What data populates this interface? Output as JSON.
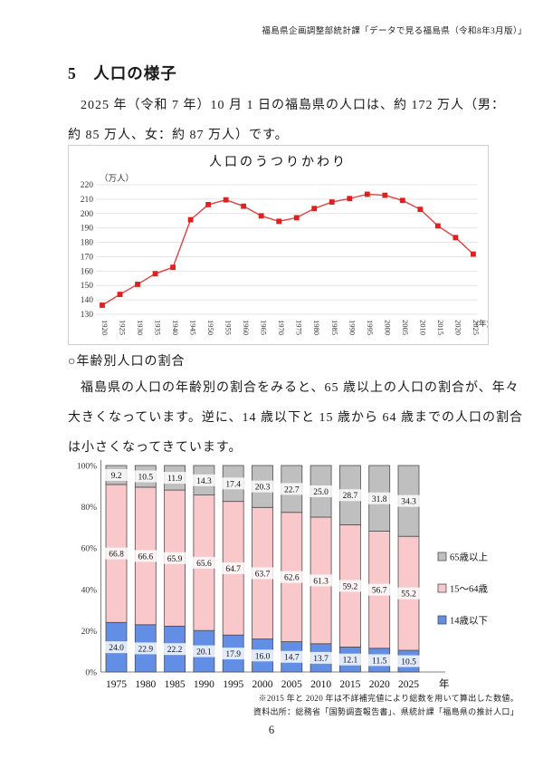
{
  "page": {
    "header": "福島県企画調整部統計課「データで見る福島県（令和8年3月版）」",
    "section_title": "5　人口の様子",
    "intro_lines": [
      "2025 年（令和 7 年）10 月 1 日の福島県の人口は、約 172 万人（男：",
      "約 85 万人、女：約 87 万人）です。"
    ],
    "subsection_heading": "○年齢別人口の割合",
    "body_lines": [
      "福島県の人口の年齢別の割合をみると、65 歳以上の人口の割合が、年々",
      "大きくなっています。逆に、14 歳以下と 15 歳から 64 歳までの人口の割合",
      "は小さくなってきています。"
    ],
    "note1": "※2015 年と 2020 年は不詳補完値により総数を用いて算出した数値。",
    "note2": "資料出所：総務省「国勢調査報告書」、県統計課「福島県の推計人口」",
    "page_number": "6"
  },
  "chart_data": [
    {
      "type": "line",
      "title": "人口のうつりかわり",
      "ylabel": "（万人）",
      "x_unit_label": "(年)",
      "x": [
        1920,
        1925,
        1930,
        1935,
        1940,
        1945,
        1950,
        1955,
        1960,
        1965,
        1970,
        1975,
        1980,
        1985,
        1990,
        1995,
        2000,
        2005,
        2010,
        2015,
        2020,
        2025
      ],
      "values": [
        136.3,
        143.8,
        150.8,
        158.2,
        162.6,
        195.7,
        206.2,
        209.5,
        205.1,
        198.4,
        194.6,
        197.1,
        203.5,
        208.0,
        210.4,
        213.4,
        212.7,
        209.1,
        202.9,
        191.4,
        183.3,
        171.8
      ],
      "ylim": [
        130,
        220
      ],
      "ytick_step": 10,
      "grid": true,
      "line_color": "#e04040",
      "marker_color": "#e01f1f"
    },
    {
      "type": "stacked_bar_100",
      "categories": [
        "1975",
        "1980",
        "1985",
        "1990",
        "1995",
        "2000",
        "2005",
        "2010",
        "2015",
        "2020",
        "2025"
      ],
      "x_unit_label": "年",
      "yticks": [
        "0%",
        "20%",
        "40%",
        "60%",
        "80%",
        "100%"
      ],
      "ylim": [
        0,
        100
      ],
      "legend_position": "right",
      "legend_order": [
        "65歳以上",
        "15〜64歳",
        "14歳以下"
      ],
      "series": [
        {
          "name": "14歳以下",
          "color": "#628ee6",
          "values": [
            24.0,
            22.9,
            22.2,
            20.1,
            17.9,
            16.0,
            14.7,
            13.7,
            12.1,
            11.5,
            10.5
          ]
        },
        {
          "name": "15〜64歳",
          "color": "#f9c8cb",
          "values": [
            66.8,
            66.6,
            65.9,
            65.6,
            64.7,
            63.7,
            62.6,
            61.3,
            59.2,
            56.7,
            55.2
          ]
        },
        {
          "name": "65歳以上",
          "color": "#bfbfbf",
          "values": [
            9.2,
            10.5,
            11.9,
            14.3,
            17.4,
            20.3,
            22.7,
            25.0,
            28.7,
            31.8,
            34.3
          ]
        }
      ]
    }
  ]
}
